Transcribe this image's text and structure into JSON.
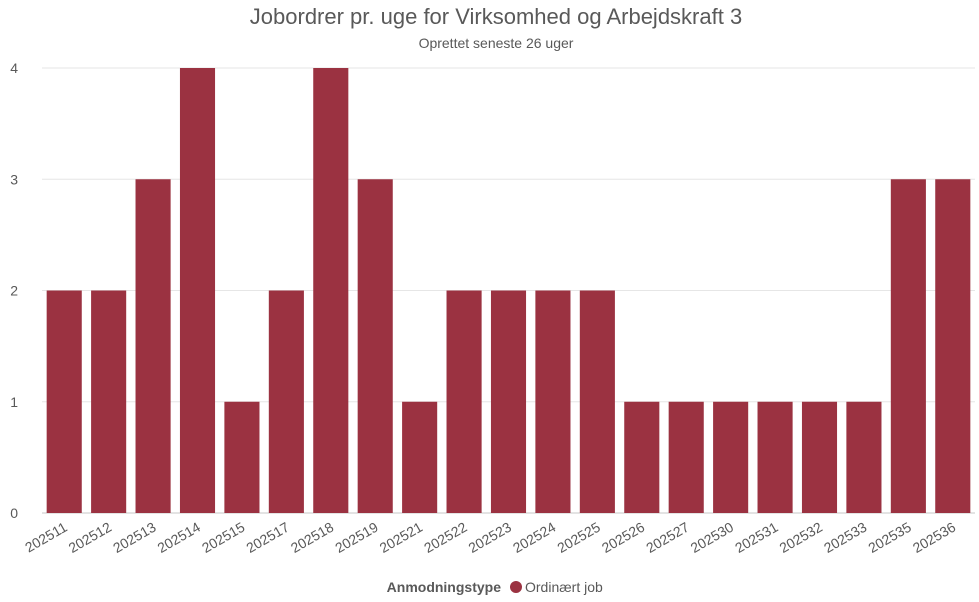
{
  "chart_data": {
    "type": "bar",
    "title": "Jobordrer pr. uge for Virksomhed og Arbejdskraft 3",
    "subtitle": "Oprettet seneste 26 uger",
    "categories": [
      "202511",
      "202512",
      "202513",
      "202514",
      "202515",
      "202517",
      "202518",
      "202519",
      "202521",
      "202522",
      "202523",
      "202524",
      "202525",
      "202526",
      "202527",
      "202530",
      "202531",
      "202532",
      "202533",
      "202535",
      "202536"
    ],
    "series": [
      {
        "name": "Ordinært job",
        "color": "#9b3241",
        "values": [
          2,
          2,
          3,
          4,
          1,
          2,
          4,
          3,
          1,
          2,
          2,
          2,
          2,
          1,
          1,
          1,
          1,
          1,
          1,
          3,
          3
        ]
      }
    ],
    "ylim": [
      0,
      4
    ],
    "yticks": [
      0,
      1,
      2,
      3,
      4
    ],
    "grid": true,
    "legend": {
      "title": "Anmodningstype",
      "placement": "bottom-center"
    }
  }
}
